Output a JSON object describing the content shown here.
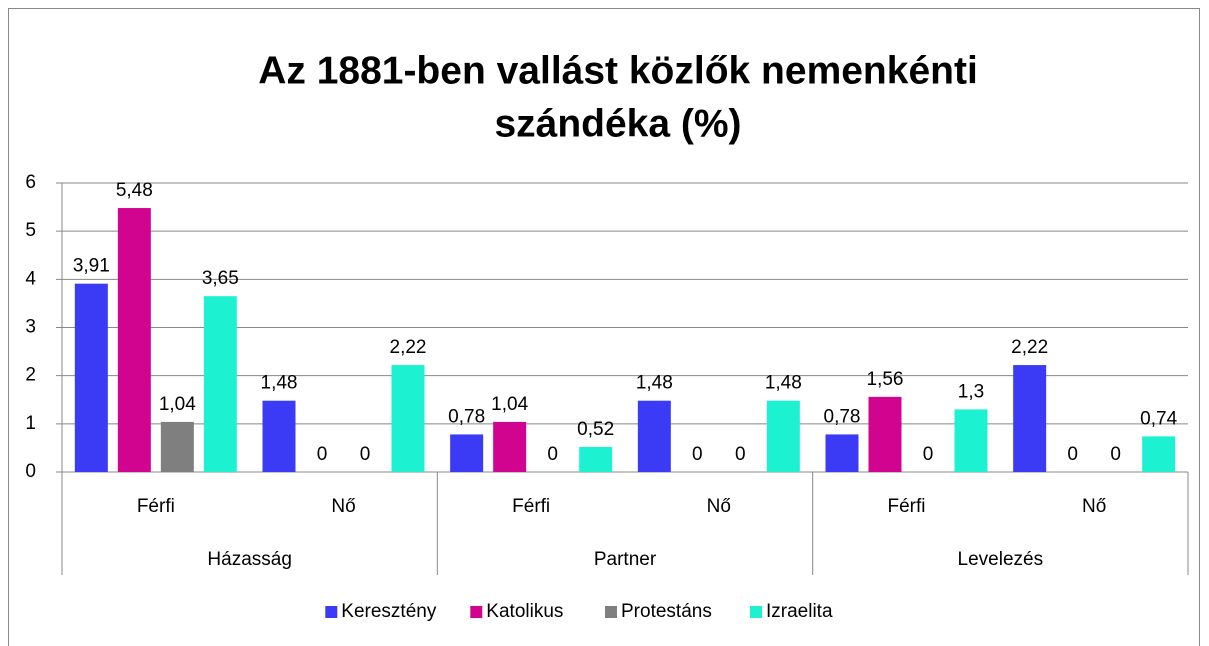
{
  "chart_data": {
    "type": "bar",
    "title": [
      "Az 1881-ben vallást közlők nemenkénti",
      "szándéka (%)"
    ],
    "groups": [
      {
        "name": "Házasság",
        "categories": [
          "Férfi",
          "Nő"
        ]
      },
      {
        "name": "Partner",
        "categories": [
          "Férfi",
          "Nő"
        ]
      },
      {
        "name": "Levelezés",
        "categories": [
          "Férfi",
          "Nő"
        ]
      }
    ],
    "series": [
      {
        "name": "Keresztény",
        "color": "#3b3bf5",
        "values": [
          3.91,
          1.48,
          0.78,
          1.48,
          0.78,
          2.22
        ],
        "value_labels": [
          "3,91",
          "1,48",
          "0,78",
          "1,48",
          "0,78",
          "2,22"
        ]
      },
      {
        "name": "Katolikus",
        "color": "#d0048f",
        "values": [
          5.48,
          0,
          1.04,
          0,
          1.56,
          0
        ],
        "value_labels": [
          "5,48",
          "0",
          "1,04",
          "0",
          "1,56",
          "0"
        ]
      },
      {
        "name": "Protestáns",
        "color": "#7f7f7f",
        "values": [
          1.04,
          0,
          0,
          0,
          0,
          0
        ],
        "value_labels": [
          "1,04",
          "0",
          "0",
          "0",
          "0",
          "0"
        ]
      },
      {
        "name": "Izraelita",
        "color": "#1cf2d2",
        "values": [
          3.65,
          2.22,
          0.52,
          1.48,
          1.3,
          0.74
        ],
        "value_labels": [
          "3,65",
          "2,22",
          "0,52",
          "1,48",
          "1,3",
          "0,74"
        ]
      }
    ],
    "ylim": [
      0,
      6
    ],
    "yticks": [
      0,
      1,
      2,
      3,
      4,
      5,
      6
    ],
    "grid": true,
    "legend": "bottom"
  }
}
